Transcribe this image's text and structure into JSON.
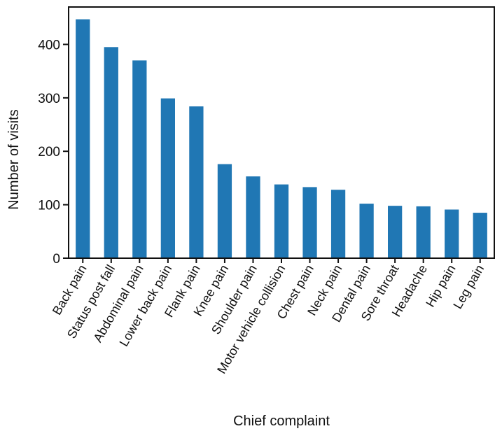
{
  "chart_data": {
    "type": "bar",
    "categories": [
      "Back pain",
      "Status post fall",
      "Abdominal pain",
      "Lower back pain",
      "Flank pain",
      "Knee pain",
      "Shoulder pain",
      "Motor vehicle collision",
      "Chest pain",
      "Neck pain",
      "Dental pain",
      "Sore throat",
      "Headache",
      "Hip pain",
      "Leg pain"
    ],
    "values": [
      447,
      395,
      370,
      299,
      284,
      176,
      153,
      138,
      133,
      128,
      102,
      98,
      97,
      91,
      85
    ],
    "title": "",
    "xlabel": "Chief complaint",
    "ylabel": "Number of visits",
    "ylim": [
      0,
      470
    ],
    "yticks": [
      "0",
      "100",
      "200",
      "300",
      "400"
    ],
    "bar_color": "#2077b4",
    "grid": false,
    "legend": "none"
  }
}
